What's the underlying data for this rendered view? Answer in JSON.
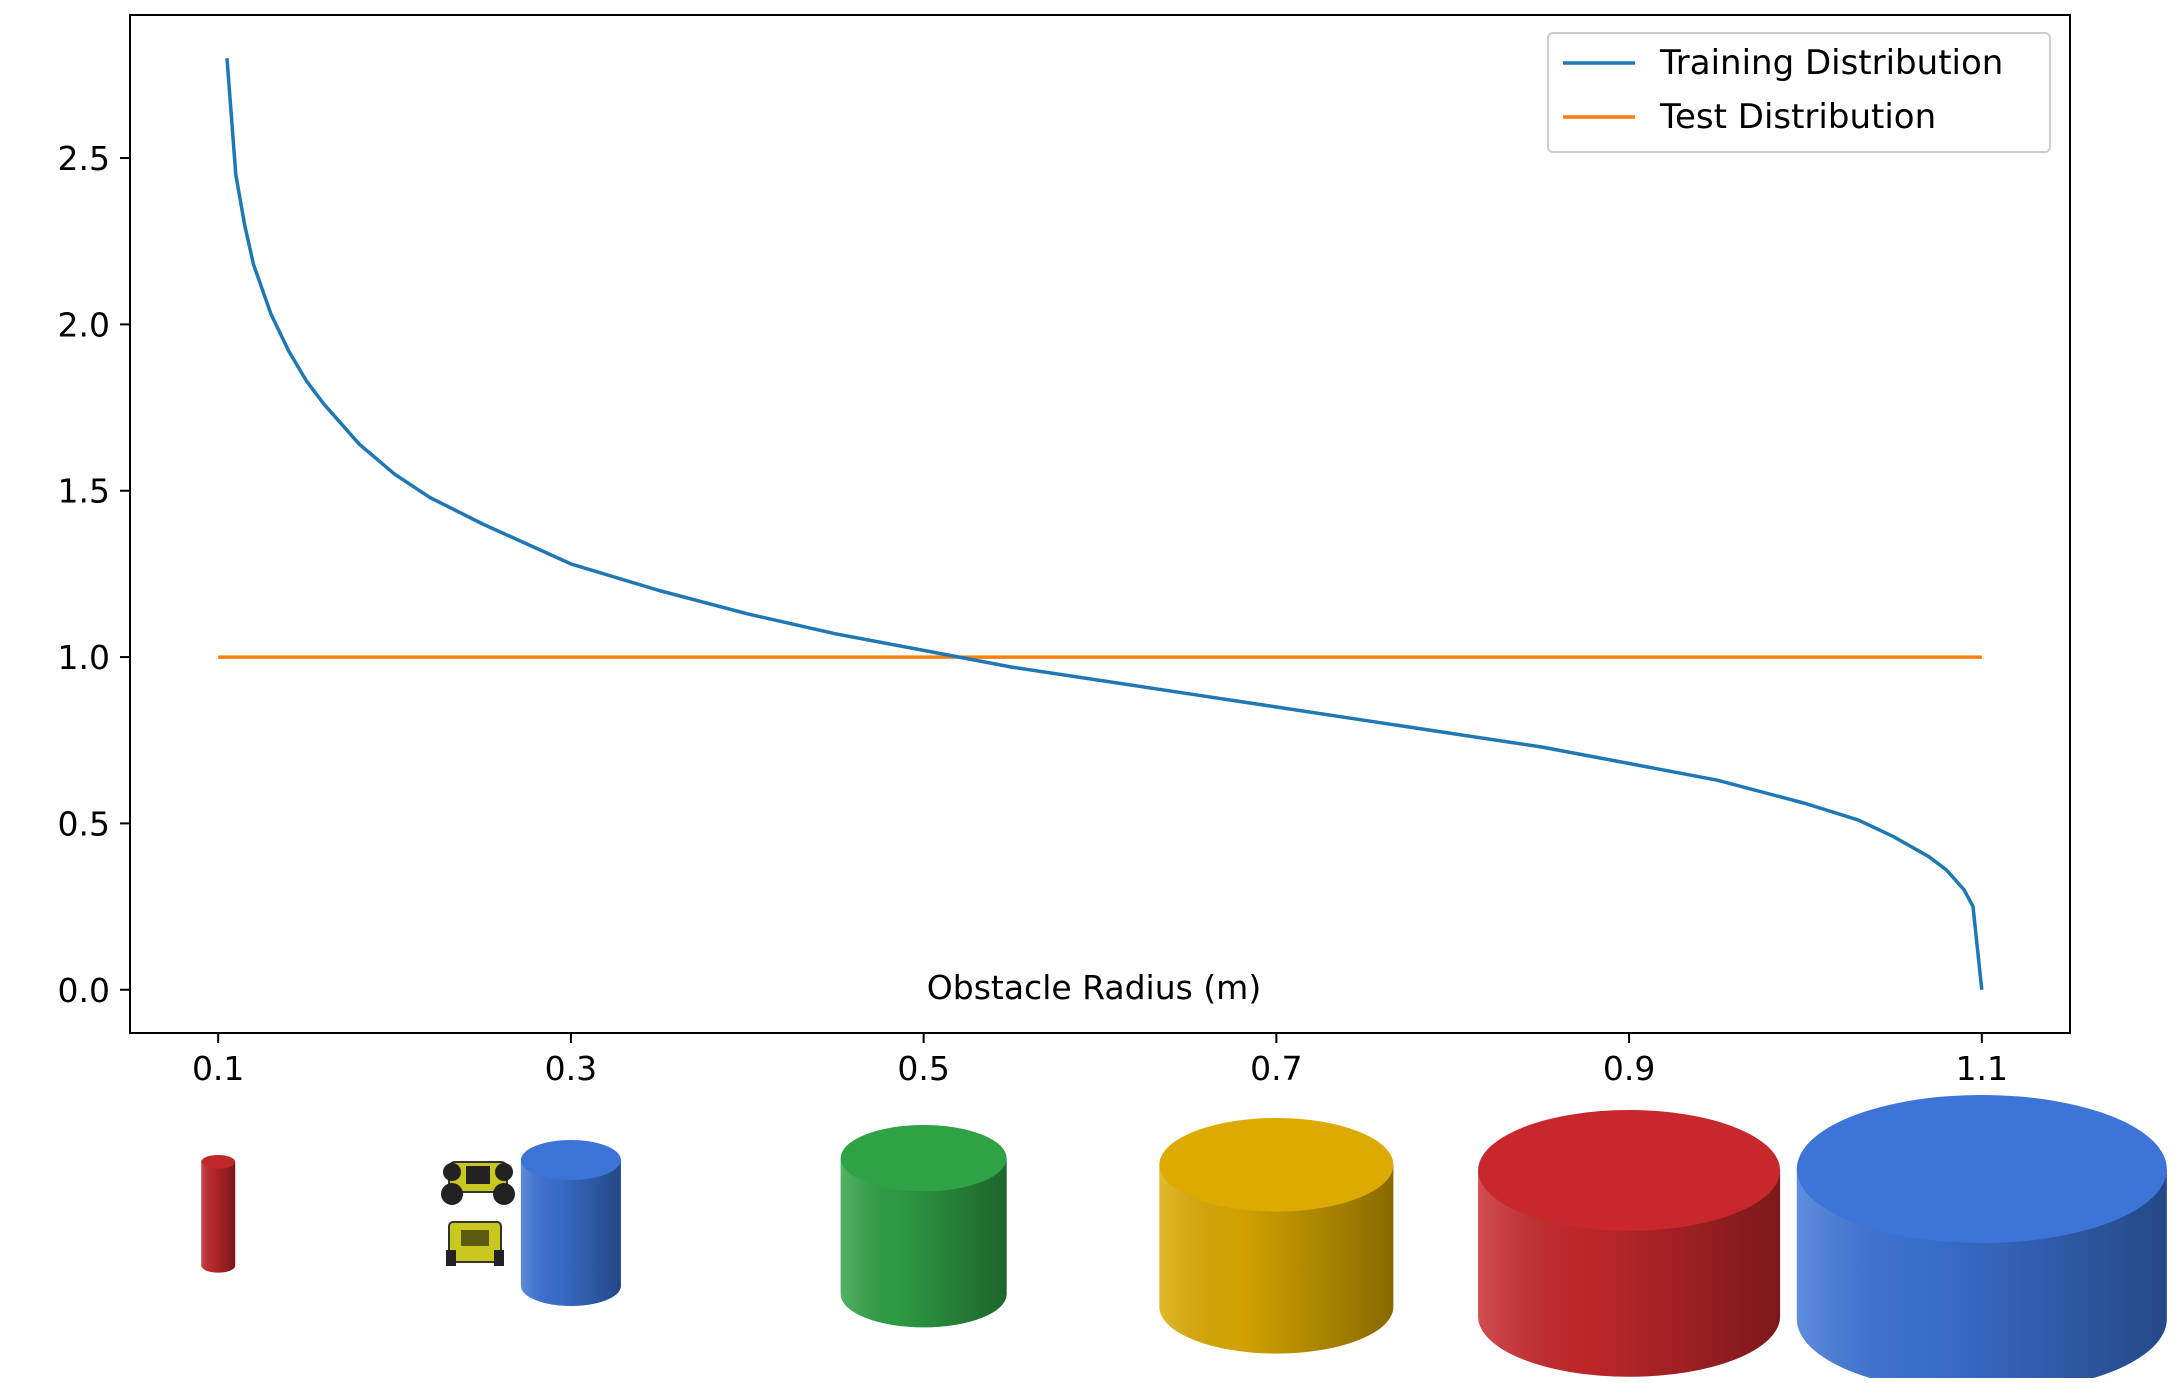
{
  "chart_data": {
    "type": "line",
    "xlabel": "Obstacle Radius (m)",
    "ylabel": "",
    "title": "",
    "xlim": [
      0.05,
      1.15
    ],
    "ylim": [
      -0.13,
      2.93
    ],
    "xticks": [
      "0.1",
      "0.3",
      "0.5",
      "0.7",
      "0.9",
      "1.1"
    ],
    "yticks": [
      "0.0",
      "0.5",
      "1.0",
      "1.5",
      "2.0",
      "2.5"
    ],
    "grid": false,
    "legend_position": "top-right",
    "series": [
      {
        "name": "Training Distribution",
        "color": "#1f77b4",
        "x": [
          0.105,
          0.11,
          0.115,
          0.12,
          0.13,
          0.14,
          0.15,
          0.16,
          0.18,
          0.2,
          0.22,
          0.25,
          0.3,
          0.35,
          0.4,
          0.45,
          0.5,
          0.55,
          0.6,
          0.65,
          0.7,
          0.75,
          0.8,
          0.85,
          0.9,
          0.95,
          1.0,
          1.03,
          1.05,
          1.07,
          1.08,
          1.09,
          1.095,
          1.1
        ],
        "y": [
          2.8,
          2.45,
          2.3,
          2.18,
          2.03,
          1.92,
          1.83,
          1.76,
          1.64,
          1.55,
          1.48,
          1.4,
          1.28,
          1.2,
          1.13,
          1.07,
          1.02,
          0.97,
          0.93,
          0.89,
          0.85,
          0.81,
          0.77,
          0.73,
          0.68,
          0.63,
          0.56,
          0.51,
          0.46,
          0.4,
          0.36,
          0.3,
          0.25,
          0.0
        ]
      },
      {
        "name": "Test Distribution",
        "color": "#ff7f0e",
        "x": [
          0.1,
          1.1
        ],
        "y": [
          1.0,
          1.0
        ]
      }
    ]
  },
  "obstacles": [
    {
      "name": "obstacle-r0.1",
      "radius": 0.1,
      "color": "#c0282c"
    },
    {
      "name": "obstacle-r0.3",
      "radius": 0.3,
      "color": "#3b73d6"
    },
    {
      "name": "obstacle-r0.5",
      "radius": 0.5,
      "color": "#2fa246"
    },
    {
      "name": "obstacle-r0.7",
      "radius": 0.7,
      "color": "#dcaa00"
    },
    {
      "name": "obstacle-r0.9",
      "radius": 0.9,
      "color": "#c8282c"
    },
    {
      "name": "obstacle-r1.1",
      "radius": 1.1,
      "color": "#3c74d8"
    }
  ],
  "robot_icon": "robot-icon"
}
